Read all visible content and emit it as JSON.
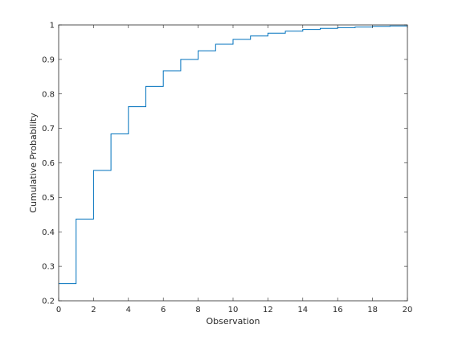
{
  "chart_data": {
    "type": "line",
    "subtype": "stairs",
    "xlabel": "Observation",
    "ylabel": "Cumulative Probability",
    "xlim": [
      0,
      20
    ],
    "ylim": [
      0.2,
      1
    ],
    "xticks": [
      0,
      2,
      4,
      6,
      8,
      10,
      12,
      14,
      16,
      18,
      20
    ],
    "yticks": [
      0.2,
      0.3,
      0.4,
      0.5,
      0.6,
      0.7,
      0.8,
      0.9,
      1
    ],
    "ytick_labels": [
      "0.2",
      "0.3",
      "0.4",
      "0.5",
      "0.6",
      "0.7",
      "0.8",
      "0.9",
      "1"
    ],
    "grid": false,
    "line_color": "#0072BD",
    "series": [
      {
        "x": [
          0,
          1,
          2,
          3,
          4,
          5,
          6,
          7,
          8,
          9,
          10,
          11,
          12,
          13,
          14,
          15,
          16,
          17,
          18,
          19,
          20
        ],
        "values": [
          0.25,
          0.437,
          0.578,
          0.684,
          0.763,
          0.822,
          0.867,
          0.9,
          0.925,
          0.944,
          0.958,
          0.968,
          0.976,
          0.982,
          0.987,
          0.99,
          0.992,
          0.994,
          0.996,
          0.997,
          0.998
        ]
      }
    ]
  }
}
